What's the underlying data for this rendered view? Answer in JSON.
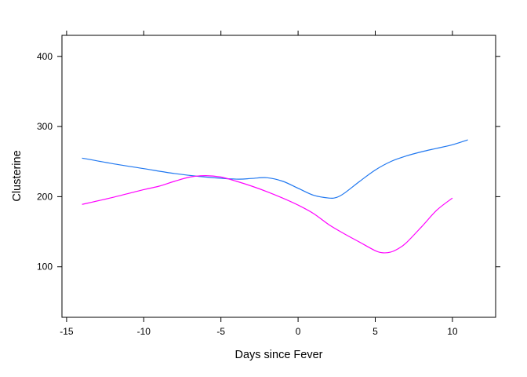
{
  "chart_data": {
    "type": "line",
    "title": "",
    "xlabel": "Days since Fever",
    "ylabel": "Clusterine",
    "xlim": [
      -15.3,
      12.8
    ],
    "ylim": [
      28,
      430
    ],
    "x_ticks": [
      -15,
      -10,
      -5,
      0,
      5,
      10
    ],
    "y_ticks": [
      100,
      200,
      300,
      400
    ],
    "grid": false,
    "legend": "none",
    "series": [
      {
        "color": "#1f77f0",
        "points": [
          [
            -14,
            255
          ],
          [
            -12,
            247
          ],
          [
            -10,
            240
          ],
          [
            -8,
            233
          ],
          [
            -6,
            228
          ],
          [
            -4,
            225
          ],
          [
            -3,
            226
          ],
          [
            -2,
            227
          ],
          [
            -1,
            222
          ],
          [
            0,
            212
          ],
          [
            1,
            202
          ],
          [
            2,
            198
          ],
          [
            2.5,
            199
          ],
          [
            3,
            205
          ],
          [
            4,
            222
          ],
          [
            5,
            238
          ],
          [
            6,
            250
          ],
          [
            7,
            258
          ],
          [
            8,
            264
          ],
          [
            9,
            269
          ],
          [
            10,
            274
          ],
          [
            11,
            281
          ]
        ]
      },
      {
        "color": "#ff00ff",
        "points": [
          [
            -14,
            189
          ],
          [
            -12,
            199
          ],
          [
            -10,
            210
          ],
          [
            -9,
            215
          ],
          [
            -8,
            222
          ],
          [
            -7,
            228
          ],
          [
            -6,
            230
          ],
          [
            -5,
            228
          ],
          [
            -4,
            222
          ],
          [
            -3,
            215
          ],
          [
            -2,
            207
          ],
          [
            -1,
            198
          ],
          [
            0,
            188
          ],
          [
            1,
            176
          ],
          [
            2,
            160
          ],
          [
            3,
            147
          ],
          [
            4,
            135
          ],
          [
            5,
            123
          ],
          [
            5.5,
            120
          ],
          [
            6,
            121
          ],
          [
            6.5,
            126
          ],
          [
            7,
            134
          ],
          [
            8,
            157
          ],
          [
            9,
            181
          ],
          [
            10,
            198
          ]
        ]
      }
    ]
  }
}
